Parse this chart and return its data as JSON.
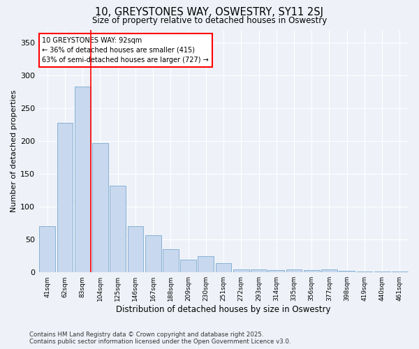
{
  "title": "10, GREYSTONES WAY, OSWESTRY, SY11 2SJ",
  "subtitle": "Size of property relative to detached houses in Oswestry",
  "xlabel": "Distribution of detached houses by size in Oswestry",
  "ylabel": "Number of detached properties",
  "bar_color": "#c8d8ee",
  "bar_edge_color": "#7aaad0",
  "categories": [
    "41sqm",
    "62sqm",
    "83sqm",
    "104sqm",
    "125sqm",
    "146sqm",
    "167sqm",
    "188sqm",
    "209sqm",
    "230sqm",
    "251sqm",
    "272sqm",
    "293sqm",
    "314sqm",
    "335sqm",
    "356sqm",
    "377sqm",
    "398sqm",
    "419sqm",
    "440sqm",
    "461sqm"
  ],
  "values": [
    70,
    228,
    283,
    197,
    132,
    70,
    57,
    35,
    19,
    25,
    14,
    4,
    5,
    3,
    5,
    3,
    5,
    2,
    1,
    1,
    1
  ],
  "ylim": [
    0,
    370
  ],
  "yticks": [
    0,
    50,
    100,
    150,
    200,
    250,
    300,
    350
  ],
  "annotation_title": "10 GREYSTONES WAY: 92sqm",
  "annotation_line1": "← 36% of detached houses are smaller (415)",
  "annotation_line2": "63% of semi-detached houses are larger (727) →",
  "background_color": "#eef2f8",
  "grid_color": "#ffffff",
  "footer_line1": "Contains HM Land Registry data © Crown copyright and database right 2025.",
  "footer_line2": "Contains public sector information licensed under the Open Government Licence v3.0."
}
